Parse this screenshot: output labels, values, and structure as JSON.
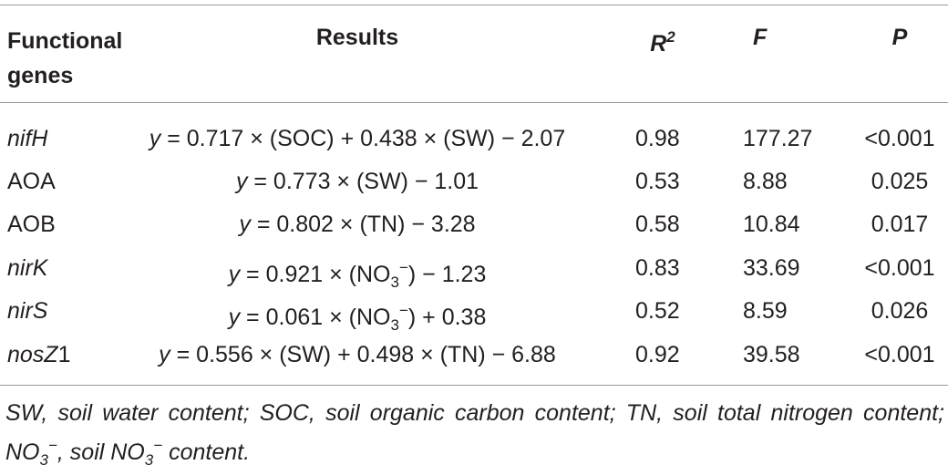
{
  "table": {
    "header": [
      [
        "Functional genes"
      ],
      [
        "Results"
      ],
      [
        "R",
        "2"
      ],
      [
        "F"
      ],
      [
        "P"
      ]
    ],
    "rows": [
      [
        [
          "nifH"
        ],
        [
          "y",
          " = 0.717 × (SOC) + 0.438 × (SW) − 2.07"
        ],
        [
          "0.98"
        ],
        [
          "177.27"
        ],
        [
          "<0.001"
        ]
      ],
      [
        [
          "AOA"
        ],
        [
          "y",
          " = 0.773 × (SW) − 1.01"
        ],
        [
          "0.53"
        ],
        [
          "8.88"
        ],
        [
          "0.025"
        ]
      ],
      [
        [
          "AOB"
        ],
        [
          "y",
          " = 0.802 × (TN) − 3.28"
        ],
        [
          "0.58"
        ],
        [
          "10.84"
        ],
        [
          "0.017"
        ]
      ],
      [
        [
          "nirK"
        ],
        [
          "y",
          " = 0.921 × (NO",
          "3",
          "−",
          ") − 1.23"
        ],
        [
          "0.83"
        ],
        [
          "33.69"
        ],
        [
          "<0.001"
        ]
      ],
      [
        [
          "nirS"
        ],
        [
          "y",
          " = 0.061 × (NO",
          "3",
          "−",
          ") + 0.38"
        ],
        [
          "0.52"
        ],
        [
          "8.59"
        ],
        [
          "0.026"
        ]
      ],
      [
        [
          "nosZ",
          "1"
        ],
        [
          "y",
          " = 0.556 × (SW) + 0.498 × (TN) − 6.88"
        ],
        [
          "0.92"
        ],
        [
          "39.58"
        ],
        [
          "<0.001"
        ]
      ]
    ],
    "footnote": [
      "SW, soil water content; SOC, soil organic carbon content; TN, soil total nitrogen content; NO",
      "3",
      "−",
      ", soil NO",
      "3",
      "−",
      " content."
    ]
  }
}
